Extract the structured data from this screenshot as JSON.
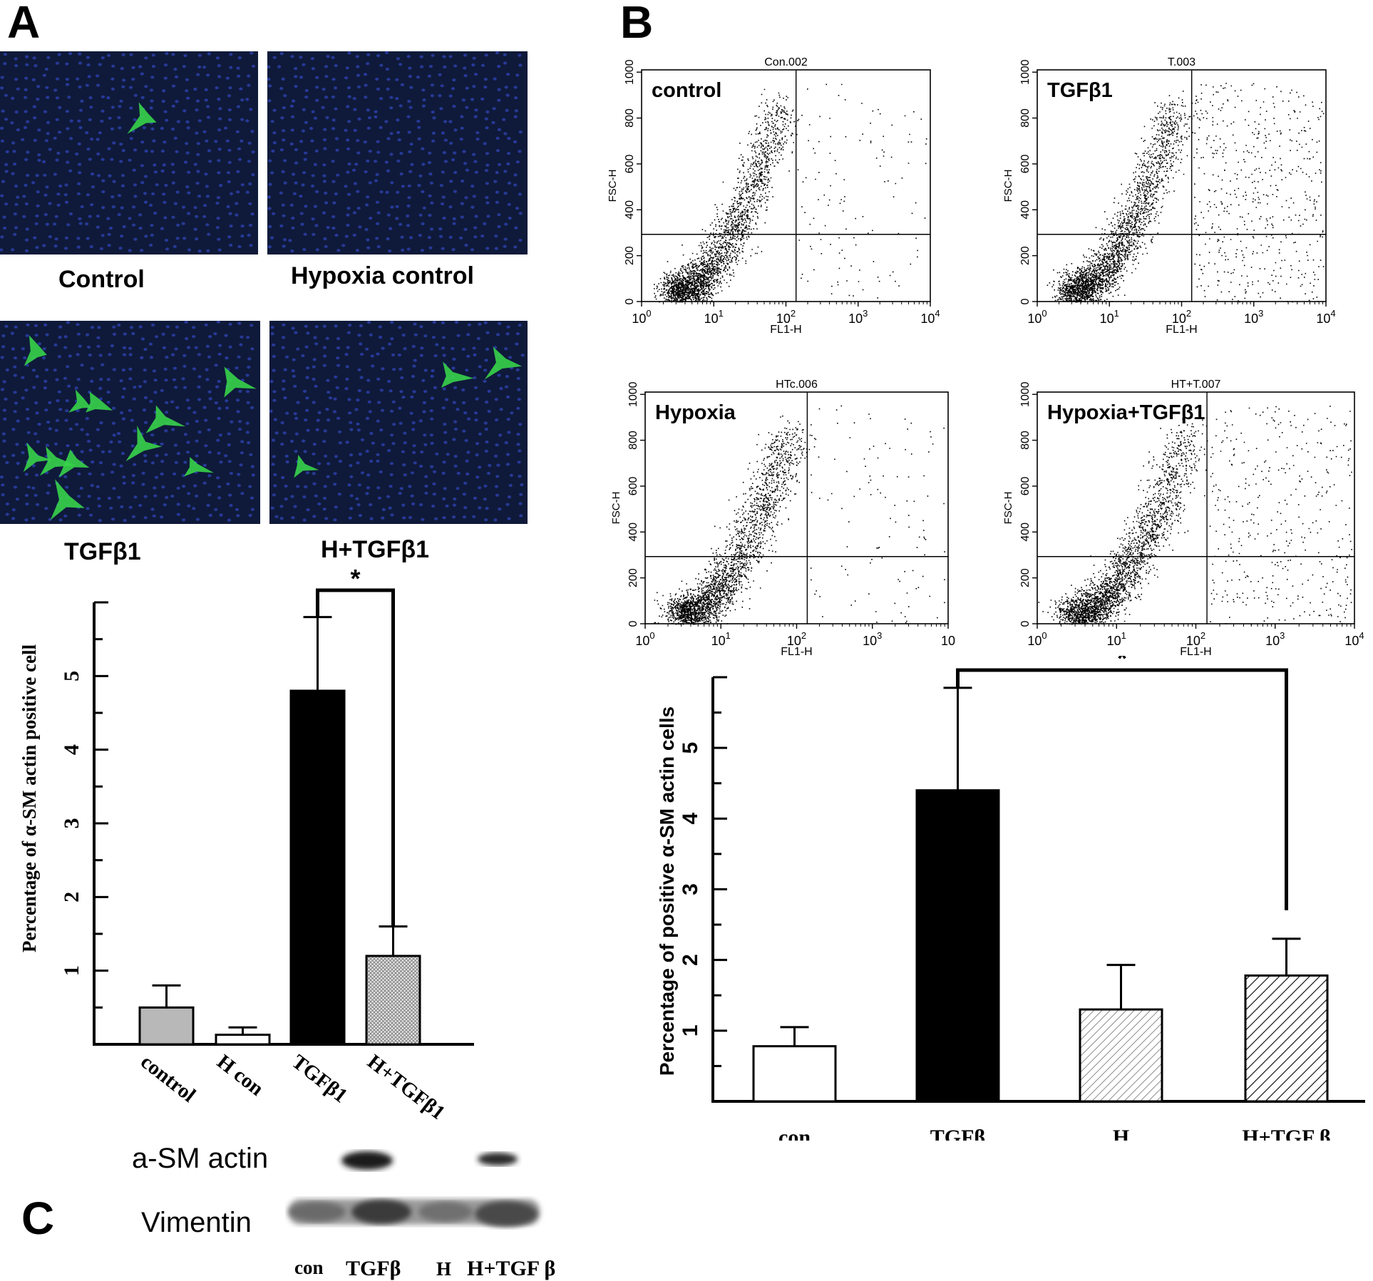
{
  "figure": {
    "panel_labels": {
      "a": "A",
      "b": "B",
      "c": "C"
    }
  },
  "micrographs": [
    {
      "label": "Control",
      "green_cells": 1
    },
    {
      "label": "Hypoxia control",
      "green_cells": 0
    },
    {
      "label": "TGFβ1",
      "green_cells": 11
    },
    {
      "label": "H+TGFβ1",
      "green_cells": 3
    }
  ],
  "flow_plots": [
    {
      "sample": "Con.002",
      "label": "control",
      "xlabel": "FL1-H",
      "ylabel": "FSC-H",
      "y_ticks": [
        "0",
        "200",
        "400",
        "600",
        "800",
        "1000"
      ],
      "x_ticks": [
        "10^0",
        "10^1",
        "10^2",
        "10^3",
        "10^4"
      ]
    },
    {
      "sample": "T.003",
      "label": "TGFβ1",
      "xlabel": "FL1-H",
      "ylabel": "FSC-H",
      "y_ticks": [
        "0",
        "200",
        "400",
        "600",
        "800",
        "1000"
      ],
      "x_ticks": [
        "10^0",
        "10^1",
        "10^2",
        "10^3",
        "10^4"
      ]
    },
    {
      "sample": "HTc.006",
      "label": "Hypoxia",
      "xlabel": "FL1-H",
      "ylabel": "FSC-H",
      "y_ticks": [
        "0",
        "200",
        "400",
        "600",
        "800",
        "1000"
      ],
      "x_ticks": [
        "10^0",
        "10^1",
        "10^2",
        "10^3",
        "10"
      ]
    },
    {
      "sample": "HT+T.007",
      "label": "Hypoxia+TGFβ1",
      "xlabel": "FL1-H",
      "ylabel": "FSC-H",
      "y_ticks": [
        "0",
        "200",
        "400",
        "600",
        "800",
        "1000"
      ],
      "x_ticks": [
        "10^0",
        "10^1",
        "10^2",
        "10^3",
        "10^4"
      ]
    }
  ],
  "chart_data": [
    {
      "type": "bar",
      "title": "",
      "ylabel": "Percentage of α-SM actin positive cell",
      "categories": [
        "control",
        "H con",
        "TGFβ1",
        "H+TGFβ1"
      ],
      "values": [
        0.5,
        0.13,
        4.8,
        1.2
      ],
      "errors": [
        0.3,
        0.1,
        1.0,
        0.4
      ],
      "fills": [
        "#b8b8b8",
        "#ffffff",
        "#000000",
        "#cfcfcf"
      ],
      "ylim": [
        0,
        6
      ],
      "y_ticks": [
        "1",
        "2",
        "3",
        "4",
        "5"
      ],
      "significance": "*"
    },
    {
      "type": "bar",
      "title": "",
      "ylabel": "Percentage of positive α-SM actin cells",
      "categories": [
        "con",
        "TGFβ",
        "H",
        "H+TGF β"
      ],
      "values": [
        0.78,
        4.4,
        1.3,
        1.78
      ],
      "errors": [
        0.27,
        1.45,
        0.63,
        0.52
      ],
      "fills": [
        "#ffffff",
        "#000000",
        "#e8e8e8",
        "#ffffff"
      ],
      "ylim": [
        0,
        6
      ],
      "y_ticks": [
        "1",
        "2",
        "3",
        "4",
        "5"
      ],
      "significance": "*"
    }
  ],
  "western_blot": {
    "rows": [
      "a-SM actin",
      "Vimentin"
    ],
    "lanes": [
      "con",
      "TGFβ",
      "H",
      "H+TGF β"
    ]
  }
}
